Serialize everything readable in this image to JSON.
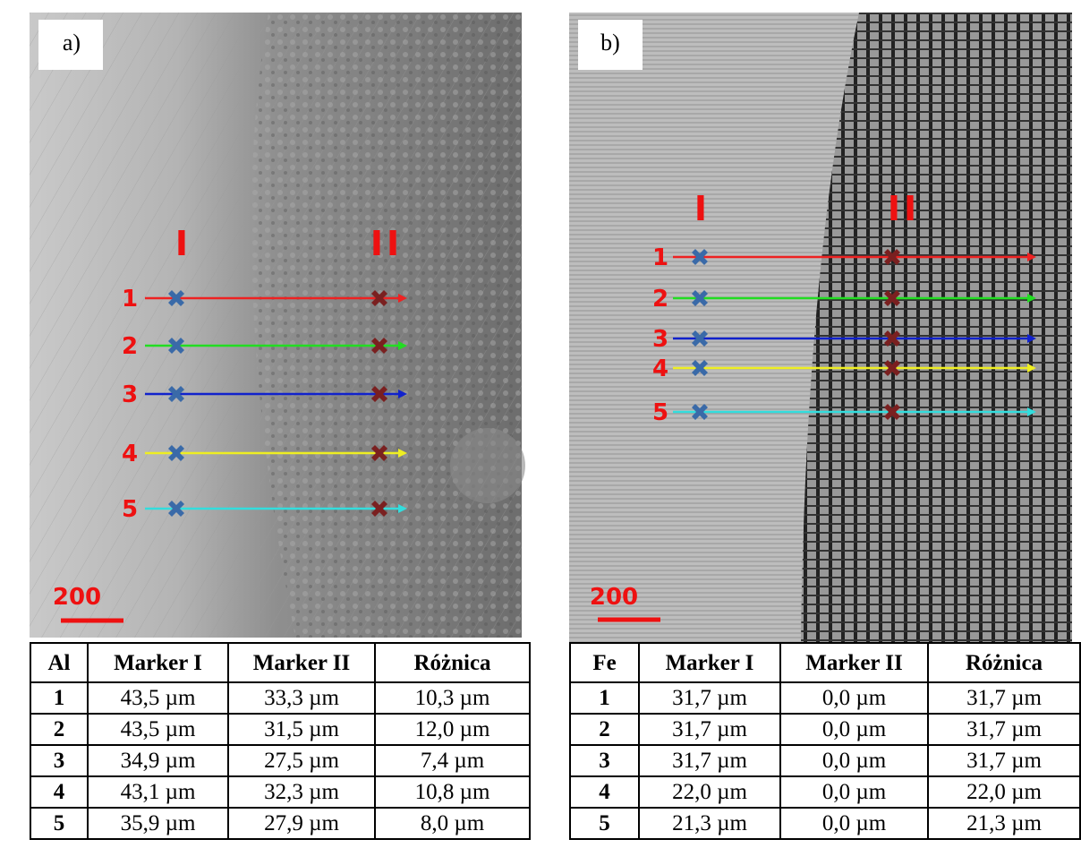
{
  "panels": [
    {
      "label": "a)",
      "markers": [
        "I",
        "II"
      ],
      "lines": [
        "1",
        "2",
        "3",
        "4",
        "5"
      ],
      "scale": "200",
      "table": {
        "header": [
          "Al",
          "Marker I",
          "Marker II",
          "Różnica"
        ],
        "rows": [
          [
            "1",
            "43,5 µm",
            "33,3 µm",
            "10,3 µm"
          ],
          [
            "2",
            "43,5 µm",
            "31,5 µm",
            "12,0 µm"
          ],
          [
            "3",
            "34,9 µm",
            "27,5 µm",
            "7,4 µm"
          ],
          [
            "4",
            "43,1 µm",
            "32,3 µm",
            "10,8 µm"
          ],
          [
            "5",
            "35,9 µm",
            "27,9 µm",
            "8,0 µm"
          ]
        ]
      }
    },
    {
      "label": "b)",
      "markers": [
        "I",
        "II"
      ],
      "lines": [
        "1",
        "2",
        "3",
        "4",
        "5"
      ],
      "scale": "200",
      "table": {
        "header": [
          "Fe",
          "Marker I",
          "Marker II",
          "Różnica"
        ],
        "rows": [
          [
            "1",
            "31,7 µm",
            "0,0 µm",
            "31,7 µm"
          ],
          [
            "2",
            "31,7 µm",
            "0,0 µm",
            "31,7 µm"
          ],
          [
            "3",
            "31,7 µm",
            "0,0 µm",
            "31,7 µm"
          ],
          [
            "4",
            "22,0 µm",
            "0,0 µm",
            "22,0 µm"
          ],
          [
            "5",
            "21,3 µm",
            "0,0 µm",
            "21,3 µm"
          ]
        ]
      }
    }
  ]
}
